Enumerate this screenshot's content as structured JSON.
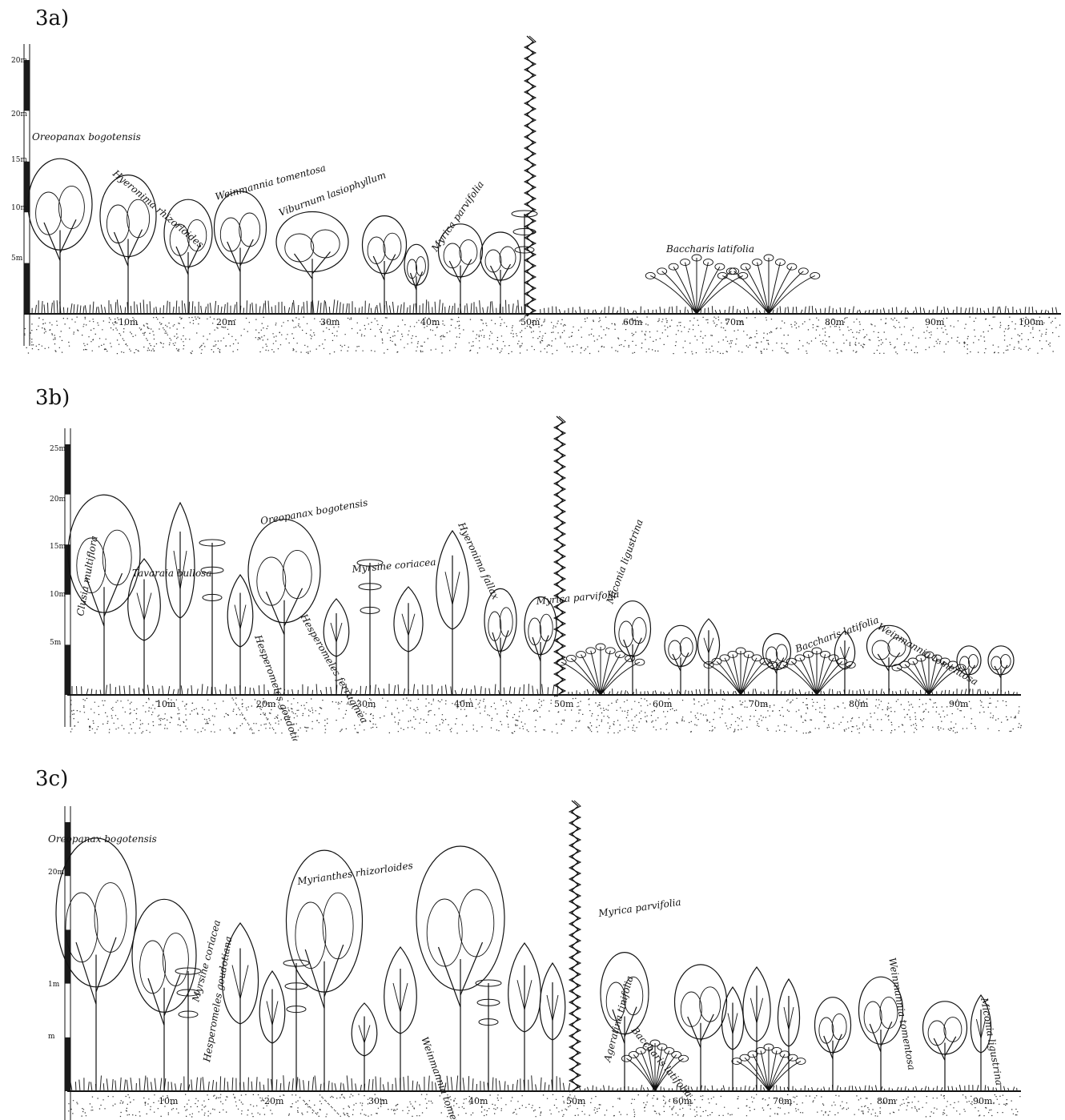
{
  "panels": [
    {
      "id": "3a",
      "title": "3a)",
      "height_labels": [
        "20m",
        "20m",
        "15m",
        "10m",
        "5m"
      ],
      "distance_labels": [
        "10m",
        "20m",
        "30m",
        "40m",
        "50m",
        "60m",
        "70m",
        "80m",
        "90m",
        "100m"
      ],
      "species": [
        "Oreopanax bogotensis",
        "Hyeronima rhizorloides",
        "Weinmannia tomentosa",
        "Viburnum lasiophyllum",
        "Myrica parvifolia",
        "Baccharis latifolia"
      ]
    },
    {
      "id": "3b",
      "title": "3b)",
      "height_labels": [
        "25m",
        "20m",
        "15m",
        "10m",
        "5m"
      ],
      "distance_labels": [
        "10m",
        "20m",
        "30m",
        "40m",
        "50m",
        "60m",
        "70m",
        "80m",
        "90m"
      ],
      "species": [
        "Clusia multiflora",
        "Tavaraia bullosa",
        "Oreopanax bogotensis",
        "Myrsine coriacea",
        "Hesperomeles goudotiana",
        "Hesperomeles ferruginea",
        "Weinmannia tomentosa",
        "Hyeronima fallax",
        "Myrica parvifolia",
        "Miconia ligustrina",
        "Baccharis latifolia",
        "Weinmannia tomentosa"
      ]
    },
    {
      "id": "3c",
      "title": "3c)",
      "height_labels": [
        "20m",
        "1m",
        "m"
      ],
      "distance_labels": [
        "10m",
        "20m",
        "30m",
        "40m",
        "50m",
        "60m",
        "70m",
        "80m",
        "90m"
      ],
      "species": [
        "Oreopanax bogotensis",
        "Myrsine coriacea",
        "Hesperomeles goudotiana",
        "Myrianthes rhizorloides",
        "Weinmannia tomentosa",
        "Ageratina tinifolia",
        "Myrica parvifolia",
        "Baccharis latifolia",
        "Weinmannia tomentosa",
        "Miconia ligustrina"
      ]
    }
  ]
}
